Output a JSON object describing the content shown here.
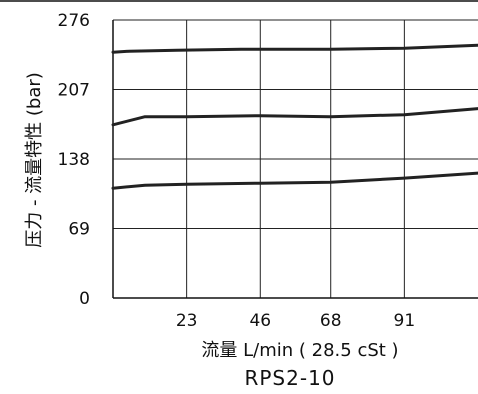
{
  "chart_data": {
    "type": "line",
    "title": "RPS2-10",
    "xlabel": "流量 L/min ( 28.5 cSt )",
    "ylabel": "压力 - 流量特性 (bar)",
    "x_ticks": [
      "23",
      "46",
      "68",
      "91"
    ],
    "y_ticks": [
      "0",
      "69",
      "138",
      "207",
      "276"
    ],
    "xlim": [
      0,
      114
    ],
    "ylim": [
      0,
      276
    ],
    "grid": true,
    "line_color": "#222222",
    "series": [
      {
        "x": [
          0,
          5,
          20,
          40,
          68,
          91,
          114
        ],
        "values": [
          244,
          245,
          246,
          247,
          247,
          248,
          251
        ]
      },
      {
        "x": [
          0,
          10,
          23,
          46,
          68,
          91,
          114
        ],
        "values": [
          172,
          180,
          180,
          181,
          180,
          182,
          188
        ]
      },
      {
        "x": [
          0,
          10,
          23,
          46,
          68,
          91,
          114
        ],
        "values": [
          109,
          112,
          113,
          114,
          115,
          119,
          124
        ]
      }
    ]
  }
}
